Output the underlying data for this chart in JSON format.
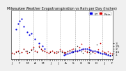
{
  "title": "Milwaukee Weather Evapotranspiration vs Rain per Day (Inches)",
  "background_color": "#f0f0f0",
  "plot_bg_color": "#ffffff",
  "legend": [
    {
      "label": "ET",
      "color": "#0000ee"
    },
    {
      "label": "Rain",
      "color": "#dd0000"
    }
  ],
  "grid_color": "#aaaaaa",
  "dot_color_et": "#0000dd",
  "dot_color_rain": "#cc0000",
  "dot_color_black": "#111111",
  "ylim": [
    0.0,
    0.9
  ],
  "yticks": [
    0.1,
    0.15,
    0.2,
    0.25,
    0.3
  ],
  "ytick_labels": [
    ".1",
    ".15",
    ".2",
    ".25",
    ".3"
  ],
  "n_points": 53,
  "vgrid_positions": [
    4,
    11,
    18,
    25,
    33,
    40,
    47
  ],
  "et_x": [
    2,
    3,
    4,
    5,
    6,
    8,
    9,
    10,
    12,
    14,
    16,
    17,
    27,
    28,
    29,
    30,
    31,
    32,
    33,
    34,
    35,
    36,
    37,
    38,
    39,
    40,
    41,
    42,
    43,
    44,
    45,
    46,
    47,
    48,
    49,
    50,
    51
  ],
  "et_y": [
    0.55,
    0.65,
    0.7,
    0.75,
    0.6,
    0.5,
    0.45,
    0.48,
    0.38,
    0.3,
    0.25,
    0.2,
    0.08,
    0.09,
    0.1,
    0.12,
    0.13,
    0.14,
    0.15,
    0.16,
    0.17,
    0.18,
    0.19,
    0.2,
    0.19,
    0.18,
    0.17,
    0.16,
    0.15,
    0.14,
    0.13,
    0.12,
    0.11,
    0.1,
    0.09,
    0.08,
    0.07
  ],
  "rain_x": [
    0,
    1,
    2,
    3,
    5,
    6,
    7,
    8,
    10,
    11,
    12,
    13,
    14,
    15,
    16,
    17,
    18,
    19,
    20,
    21,
    22,
    23,
    24,
    25,
    26,
    27,
    28,
    29,
    30,
    31,
    32,
    33,
    34,
    35,
    36,
    37,
    38,
    39,
    40,
    41,
    42,
    43,
    44,
    45,
    46,
    47,
    48,
    49,
    50,
    51,
    52
  ],
  "rain_y": [
    0.12,
    0.1,
    0.14,
    0.16,
    0.13,
    0.2,
    0.15,
    0.12,
    0.18,
    0.22,
    0.16,
    0.14,
    0.25,
    0.2,
    0.17,
    0.15,
    0.13,
    0.12,
    0.14,
    0.16,
    0.13,
    0.12,
    0.14,
    0.18,
    0.15,
    0.13,
    0.12,
    0.14,
    0.16,
    0.18,
    0.2,
    0.16,
    0.14,
    0.22,
    0.28,
    0.18,
    0.15,
    0.13,
    0.22,
    0.16,
    0.14,
    0.12,
    0.14,
    0.18,
    0.3,
    0.15,
    0.13,
    0.12,
    0.14,
    0.12,
    0.1
  ],
  "black_x": [
    0,
    1,
    2,
    3,
    4,
    5,
    6,
    7,
    8,
    9,
    10,
    11,
    12,
    13,
    14,
    15,
    16,
    17,
    18,
    19,
    20,
    21,
    22,
    23,
    24,
    25,
    26,
    27,
    28,
    29,
    30,
    31,
    32,
    33,
    34,
    35,
    36,
    37,
    38,
    39,
    40,
    41,
    42,
    43,
    44,
    45,
    46,
    47,
    48,
    49,
    50,
    51,
    52
  ],
  "black_y": [
    0.12,
    0.1,
    0.13,
    0.14,
    0.12,
    0.13,
    0.18,
    0.14,
    0.16,
    0.13,
    0.17,
    0.2,
    0.15,
    0.13,
    0.22,
    0.18,
    0.15,
    0.14,
    0.13,
    0.12,
    0.13,
    0.15,
    0.12,
    0.14,
    0.13,
    0.15,
    0.13,
    0.12,
    0.13,
    0.15,
    0.17,
    0.16,
    0.13,
    0.2,
    0.25,
    0.17,
    0.14,
    0.12,
    0.2,
    0.15,
    0.13,
    0.11,
    0.13,
    0.16,
    0.27,
    0.14,
    0.12,
    0.11,
    0.13,
    0.11,
    0.09,
    0.08,
    0.08
  ],
  "tick_fontsize": 3.0,
  "title_fontsize": 3.5,
  "legend_fontsize": 3.2,
  "ytick_fontsize": 3.0,
  "dot_size_et": 2.5,
  "dot_size_rain": 1.5,
  "dot_size_black": 1.0
}
